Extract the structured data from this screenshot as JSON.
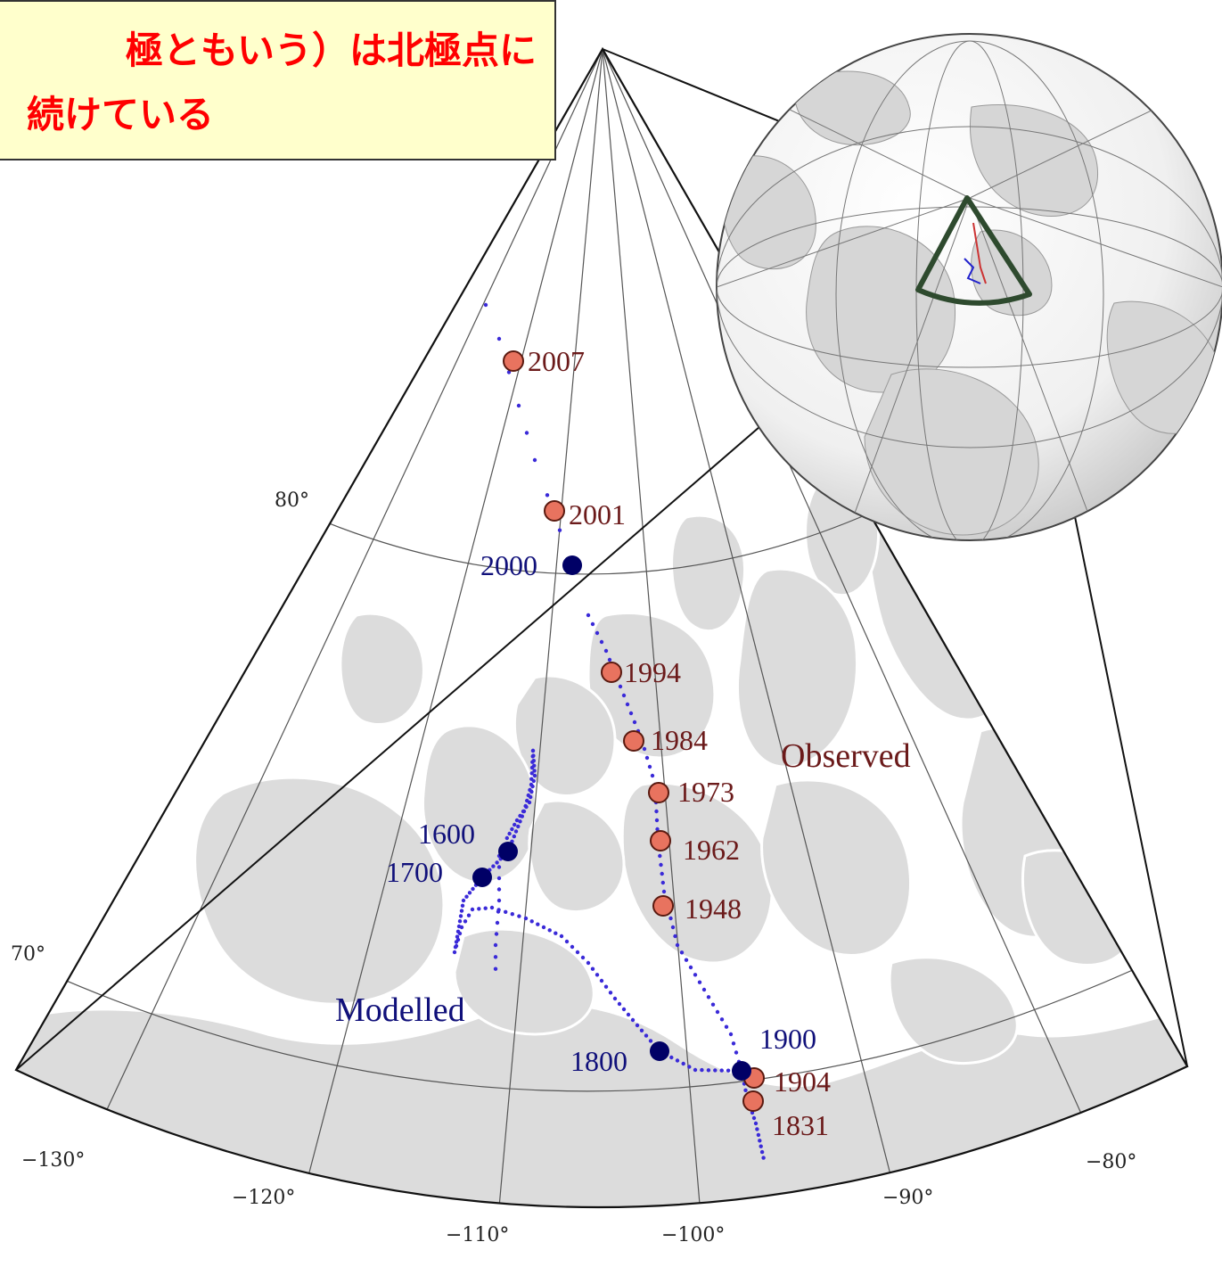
{
  "caption": {
    "line1": "極ともいう）は北極点に",
    "line2": "続けている",
    "color": "#ff0000",
    "background": "#ffffcc"
  },
  "labels": {
    "observed": "Observed",
    "modelled": "Modelled"
  },
  "colors": {
    "observed_fill": "#e8735f",
    "observed_text": "#6b1a1a",
    "modelled_fill": "#000066",
    "modelled_text": "#10107a",
    "modelled_dots": "#3a2ad8",
    "land": "#dcdcdc",
    "land_edge": "#ffffff",
    "inset_outline": "#2e4a2e"
  },
  "graticule": {
    "latitudes": [
      "80°",
      "70°"
    ],
    "longitudes": [
      "−130°",
      "−120°",
      "−110°",
      "−100°",
      "−90°",
      "−80°"
    ]
  },
  "observed_poles": [
    {
      "year": "2007"
    },
    {
      "year": "2001"
    },
    {
      "year": "1994"
    },
    {
      "year": "1984"
    },
    {
      "year": "1973"
    },
    {
      "year": "1962"
    },
    {
      "year": "1948"
    },
    {
      "year": "1904"
    },
    {
      "year": "1831"
    }
  ],
  "modelled_poles": [
    {
      "year": "2000"
    },
    {
      "year": "1600"
    },
    {
      "year": "1700"
    },
    {
      "year": "1800"
    },
    {
      "year": "1900"
    }
  ],
  "inset": {
    "description_icon": "globe-icon"
  }
}
